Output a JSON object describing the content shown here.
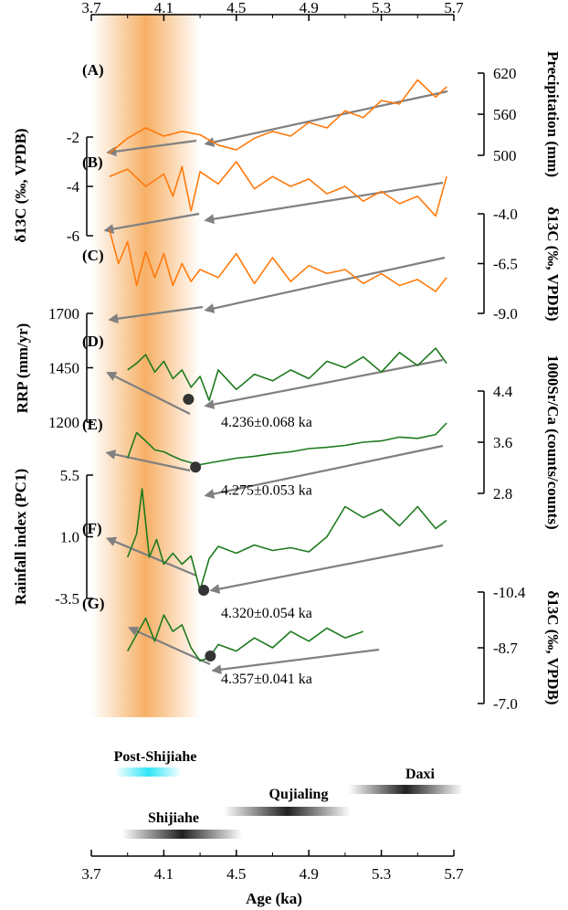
{
  "chart_data": {
    "type": "line",
    "x_axis": {
      "label": "Age (ka)",
      "range": [
        3.7,
        5.7
      ],
      "ticks": [
        "3.7",
        "4.1",
        "4.5",
        "4.9",
        "5.3",
        "5.7"
      ]
    },
    "highlight_band": {
      "from": 3.7,
      "to": 4.3,
      "color": "#f5a24b"
    },
    "panels": [
      {
        "id": "A",
        "label": "(A)",
        "color": "#ff7a0d",
        "axis_side": "right",
        "axis_title": "Precipitation (mm)",
        "ylim": [
          500,
          620
        ],
        "y_ticks": [
          "620",
          "560",
          "500"
        ],
        "trend_color": "#808080",
        "x": [
          3.8,
          3.9,
          4.0,
          4.1,
          4.2,
          4.3,
          4.4,
          4.5,
          4.6,
          4.7,
          4.8,
          4.9,
          5.0,
          5.1,
          5.2,
          5.3,
          5.4,
          5.5,
          5.6,
          5.66
        ],
        "values": [
          503,
          525,
          540,
          528,
          535,
          530,
          515,
          508,
          525,
          535,
          528,
          548,
          540,
          565,
          555,
          580,
          575,
          610,
          585,
          600
        ]
      },
      {
        "id": "B",
        "label": "(B)",
        "color": "#ff7a0d",
        "axis_side": "left",
        "axis_title": "δ13C (‰, VPDB)",
        "ylim": [
          -6,
          -2
        ],
        "y_ticks": [
          "-6",
          "-4",
          "-2"
        ],
        "trend_color": "#808080",
        "x": [
          3.8,
          3.9,
          4.0,
          4.1,
          4.15,
          4.2,
          4.25,
          4.3,
          4.4,
          4.5,
          4.6,
          4.7,
          4.8,
          4.9,
          5.0,
          5.1,
          5.2,
          5.3,
          5.4,
          5.5,
          5.6,
          5.66
        ],
        "values": [
          -3.6,
          -3.3,
          -4.0,
          -3.5,
          -4.4,
          -3.2,
          -5.0,
          -3.4,
          -3.9,
          -3.0,
          -4.1,
          -3.6,
          -4.0,
          -3.7,
          -4.3,
          -4.0,
          -4.6,
          -4.2,
          -4.7,
          -4.4,
          -5.2,
          -3.6
        ]
      },
      {
        "id": "C",
        "label": "(C)",
        "color": "#ff7a0d",
        "axis_side": "right",
        "axis_title": "δ13C (‰, VPDB)",
        "ylim": [
          -9.0,
          -4.0
        ],
        "y_ticks": [
          "-9.0",
          "-6.5",
          "-4.0"
        ],
        "trend_color": "#808080",
        "x": [
          3.8,
          3.85,
          3.9,
          3.95,
          4.0,
          4.05,
          4.1,
          4.15,
          4.2,
          4.25,
          4.3,
          4.4,
          4.5,
          4.6,
          4.7,
          4.8,
          4.9,
          5.0,
          5.1,
          5.2,
          5.3,
          5.4,
          5.5,
          5.6,
          5.66
        ],
        "values": [
          -4.8,
          -6.5,
          -5.4,
          -7.6,
          -5.9,
          -7.2,
          -6.0,
          -7.6,
          -6.5,
          -7.4,
          -6.8,
          -7.2,
          -6.0,
          -7.5,
          -6.2,
          -7.4,
          -6.6,
          -7.0,
          -6.8,
          -7.5,
          -7.0,
          -7.6,
          -7.3,
          -7.9,
          -7.2
        ]
      },
      {
        "id": "D",
        "label": "(D)",
        "color": "#1e7a1e",
        "axis_side": "left",
        "axis_title": "RRP (mm/yr)",
        "ylim": [
          1200,
          1700
        ],
        "y_ticks": [
          "1700",
          "1450",
          "1200"
        ],
        "trend_color": "#808080",
        "breakpoint": {
          "x": 4.236,
          "y": 1305,
          "label": "4.236±0.068  ka"
        },
        "x": [
          3.9,
          3.95,
          4.0,
          4.05,
          4.1,
          4.15,
          4.2,
          4.25,
          4.3,
          4.35,
          4.4,
          4.5,
          4.6,
          4.7,
          4.8,
          4.9,
          5.0,
          5.1,
          5.2,
          5.3,
          5.4,
          5.5,
          5.6,
          5.66
        ],
        "values": [
          1440,
          1470,
          1510,
          1430,
          1480,
          1400,
          1440,
          1360,
          1410,
          1300,
          1440,
          1350,
          1420,
          1390,
          1440,
          1400,
          1480,
          1450,
          1500,
          1430,
          1520,
          1460,
          1540,
          1470
        ]
      },
      {
        "id": "E",
        "label": "(E)",
        "color": "#1e7a1e",
        "axis_side": "right",
        "axis_title": "1000Sr/Ca (counts/counts)",
        "ylim": [
          2.8,
          4.4
        ],
        "y_ticks": [
          "4.4",
          "3.6",
          "2.8"
        ],
        "trend_color": "#808080",
        "breakpoint": {
          "x": 4.275,
          "y": 3.21,
          "label": "4.275±0.053  ka"
        },
        "x": [
          3.9,
          3.95,
          4.0,
          4.05,
          4.1,
          4.15,
          4.2,
          4.25,
          4.3,
          4.4,
          4.5,
          4.6,
          4.7,
          4.8,
          4.9,
          5.0,
          5.1,
          5.2,
          5.3,
          5.4,
          5.5,
          5.6,
          5.66
        ],
        "values": [
          3.35,
          3.75,
          3.62,
          3.48,
          3.45,
          3.38,
          3.32,
          3.28,
          3.25,
          3.3,
          3.35,
          3.38,
          3.42,
          3.45,
          3.5,
          3.52,
          3.55,
          3.6,
          3.62,
          3.68,
          3.66,
          3.72,
          3.9
        ]
      },
      {
        "id": "F",
        "label": "(F)",
        "color": "#1e7a1e",
        "axis_side": "left",
        "axis_title": "Rainfall index (PC1)",
        "ylim": [
          -3.5,
          5.5
        ],
        "y_ticks": [
          "5.5",
          "1.0",
          "-3.5"
        ],
        "trend_color": "#808080",
        "breakpoint": {
          "x": 4.32,
          "y": -2.9,
          "label": "4.320±0.054  ka"
        },
        "x": [
          3.9,
          3.95,
          3.98,
          4.02,
          4.06,
          4.1,
          4.15,
          4.2,
          4.25,
          4.3,
          4.35,
          4.4,
          4.5,
          4.6,
          4.7,
          4.8,
          4.9,
          5.0,
          5.1,
          5.2,
          5.3,
          5.4,
          5.5,
          5.6,
          5.66
        ],
        "values": [
          -0.5,
          1.2,
          4.5,
          -0.5,
          0.8,
          -1.0,
          -0.2,
          -1.0,
          -0.4,
          -2.9,
          -0.6,
          0.3,
          -0.2,
          0.4,
          0.0,
          0.2,
          -0.1,
          1.0,
          3.2,
          2.4,
          3.0,
          1.8,
          3.2,
          1.6,
          2.2
        ]
      },
      {
        "id": "G",
        "label": "(G)",
        "color": "#1e7a1e",
        "axis_side": "right",
        "axis_title": "δ13C (‰, VPDB)",
        "ylim": [
          -7.0,
          -10.4
        ],
        "y_ticks": [
          "-10.4",
          "-8.7",
          "-7.0"
        ],
        "trend_color": "#808080",
        "breakpoint": {
          "x": 4.357,
          "y": -8.45,
          "label": "4.357±0.041  ka"
        },
        "x": [
          3.9,
          3.95,
          4.0,
          4.05,
          4.1,
          4.15,
          4.2,
          4.25,
          4.3,
          4.35,
          4.4,
          4.5,
          4.6,
          4.7,
          4.8,
          4.9,
          5.0,
          5.1,
          5.2
        ],
        "values": [
          -8.6,
          -9.1,
          -9.6,
          -8.9,
          -9.7,
          -9.2,
          -9.4,
          -8.7,
          -8.3,
          -8.4,
          -8.8,
          -8.6,
          -9.0,
          -8.7,
          -9.2,
          -8.9,
          -9.3,
          -9.0,
          -9.2
        ]
      }
    ],
    "cultures": [
      {
        "name": "Post-Shijiahe",
        "from": 3.83,
        "to": 4.2,
        "color": "#2fe6f7"
      },
      {
        "name": "Daxi",
        "from": 5.12,
        "to": 5.75,
        "color": "#202020"
      },
      {
        "name": "Qujialing",
        "from": 4.43,
        "to": 5.13,
        "color": "#202020"
      },
      {
        "name": "Shijiahe",
        "from": 3.87,
        "to": 4.53,
        "color": "#202020"
      }
    ]
  }
}
